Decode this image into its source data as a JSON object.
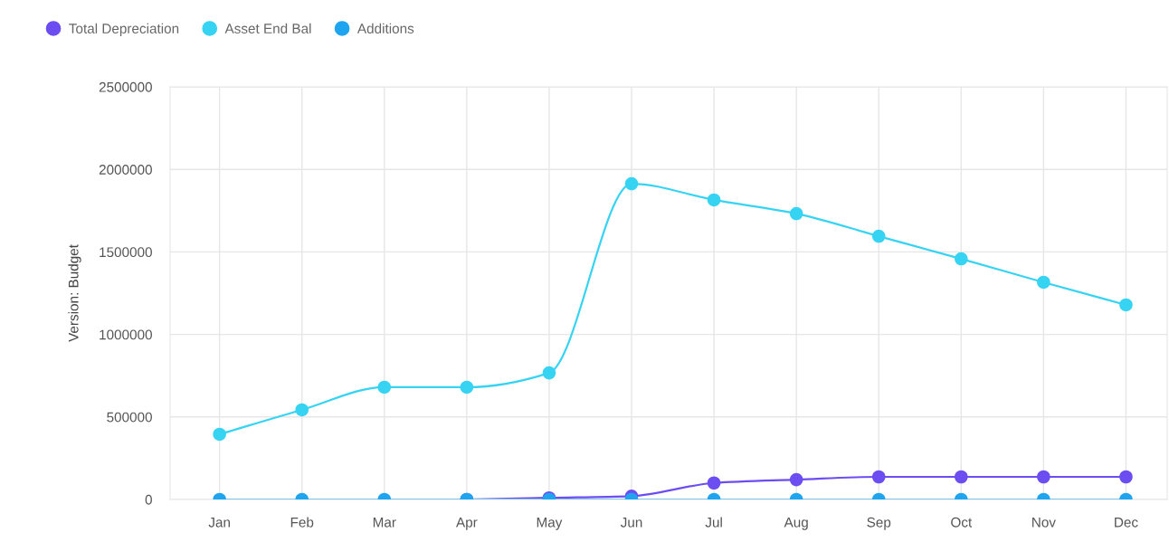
{
  "chart_data": {
    "type": "line",
    "ylabel": "Version: Budget",
    "categories": [
      "Jan",
      "Feb",
      "Mar",
      "Apr",
      "May",
      "Jun",
      "Jul",
      "Aug",
      "Sep",
      "Oct",
      "Nov",
      "Dec"
    ],
    "series": [
      {
        "name": "Total Depreciation",
        "color": "#6c4df2",
        "values": [
          null,
          null,
          null,
          0,
          10000,
          20000,
          100000,
          120000,
          137000,
          137000,
          137000,
          137000
        ]
      },
      {
        "name": "Asset End Bal",
        "color": "#36d3f2",
        "values": [
          395000,
          543000,
          680000,
          680000,
          767000,
          1913000,
          1815000,
          1732000,
          1595000,
          1458000,
          1316000,
          1179000
        ]
      },
      {
        "name": "Additions",
        "color": "#1fa5f0",
        "values": [
          0,
          0,
          0,
          0,
          0,
          0,
          0,
          0,
          0,
          0,
          0,
          0
        ]
      }
    ],
    "ylim": [
      0,
      2500000
    ],
    "yticks": [
      0,
      500000,
      1000000,
      1500000,
      2000000,
      2500000
    ],
    "grid": true,
    "legend": "top left",
    "marker": "circle",
    "line_style": "solid"
  }
}
